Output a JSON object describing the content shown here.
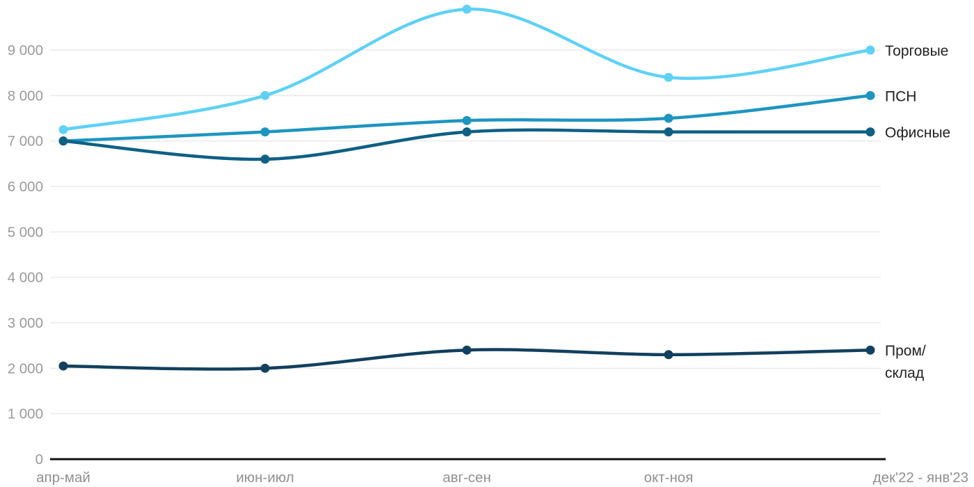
{
  "chart_data": {
    "type": "line",
    "title": "",
    "xlabel": "",
    "ylabel": "",
    "categories": [
      "апр-май",
      "июн-июл",
      "авг-сен",
      "окт-ноя",
      "дек'22 - янв'23"
    ],
    "series": [
      {
        "name": "Торговые",
        "color": "#5fd1f5",
        "values": [
          7250,
          8000,
          9900,
          8400,
          9000
        ]
      },
      {
        "name": "ПСН",
        "color": "#1e95c0",
        "values": [
          7000,
          7200,
          7450,
          7500,
          8000
        ]
      },
      {
        "name": "Офисные",
        "color": "#0f6084",
        "values": [
          7000,
          6600,
          7200,
          7200,
          7200
        ]
      },
      {
        "name": "Пром/склад",
        "label_lines": [
          "Пром/",
          "склад"
        ],
        "color": "#12405e",
        "values": [
          2050,
          2000,
          2400,
          2300,
          2400
        ]
      }
    ],
    "yticks": [
      0,
      1000,
      2000,
      3000,
      4000,
      5000,
      6000,
      7000,
      8000,
      9000
    ],
    "ytick_labels": [
      "0",
      "1 000",
      "2 000",
      "3 000",
      "4 000",
      "5 000",
      "6 000",
      "7 000",
      "8 000",
      "9 000"
    ],
    "ylim": [
      0,
      9900
    ],
    "grid": true,
    "legend_position": "right-of-line-ends",
    "smooth": true
  },
  "colors": {
    "background": "#ffffff",
    "gridline": "#eaeaea",
    "axis_line": "#111111",
    "tick_label": "#9a9a9a",
    "series_label": "#212121"
  }
}
